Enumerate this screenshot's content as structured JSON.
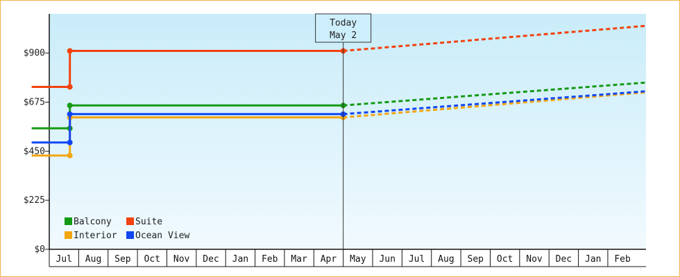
{
  "chart_data": {
    "type": "line",
    "title": "",
    "xlabel": "",
    "ylabel": "",
    "y_unit_prefix": "$",
    "ylim": [
      0,
      1080
    ],
    "yticks": [
      0,
      225,
      450,
      675,
      900
    ],
    "ytick_labels": [
      "$0",
      "$225",
      "$450",
      "$675",
      "$900"
    ],
    "months": [
      "Jul",
      "Aug",
      "Sep",
      "Oct",
      "Nov",
      "Dec",
      "Jan",
      "Feb",
      "Mar",
      "Apr",
      "May",
      "Jun",
      "Jul",
      "Aug",
      "Sep",
      "Oct",
      "Nov",
      "Dec",
      "Jan",
      "Feb"
    ],
    "x_range_months": [
      0,
      20.3
    ],
    "today": {
      "line1": "Today",
      "line2": "May 2",
      "x_month": 10.0
    },
    "legend_position": "bottom-left",
    "grid": false,
    "background": "light-blue gradient",
    "series": [
      {
        "name": "Balcony",
        "color": "#159a15",
        "history": [
          [
            -0.6,
            555
          ],
          [
            0.7,
            555
          ],
          [
            0.7,
            660
          ],
          [
            10.0,
            660
          ]
        ],
        "forecast": [
          [
            10.0,
            660
          ],
          [
            20.3,
            765
          ]
        ]
      },
      {
        "name": "Suite",
        "color": "#f2420f",
        "history": [
          [
            -0.6,
            745
          ],
          [
            0.7,
            745
          ],
          [
            0.7,
            910
          ],
          [
            10.0,
            910
          ]
        ],
        "forecast": [
          [
            10.0,
            910
          ],
          [
            20.3,
            1025
          ]
        ]
      },
      {
        "name": "Interior",
        "color": "#f3a611",
        "history": [
          [
            -0.6,
            430
          ],
          [
            0.7,
            430
          ],
          [
            0.7,
            605
          ],
          [
            10.0,
            605
          ]
        ],
        "forecast": [
          [
            10.0,
            605
          ],
          [
            20.3,
            720
          ]
        ]
      },
      {
        "name": "Ocean View",
        "color": "#1046f2",
        "history": [
          [
            -0.6,
            490
          ],
          [
            0.7,
            490
          ],
          [
            0.7,
            620
          ],
          [
            10.0,
            620
          ]
        ],
        "forecast": [
          [
            10.0,
            620
          ],
          [
            20.3,
            725
          ]
        ]
      }
    ],
    "legend_order": [
      "Balcony",
      "Suite",
      "Interior",
      "Ocean View"
    ]
  }
}
